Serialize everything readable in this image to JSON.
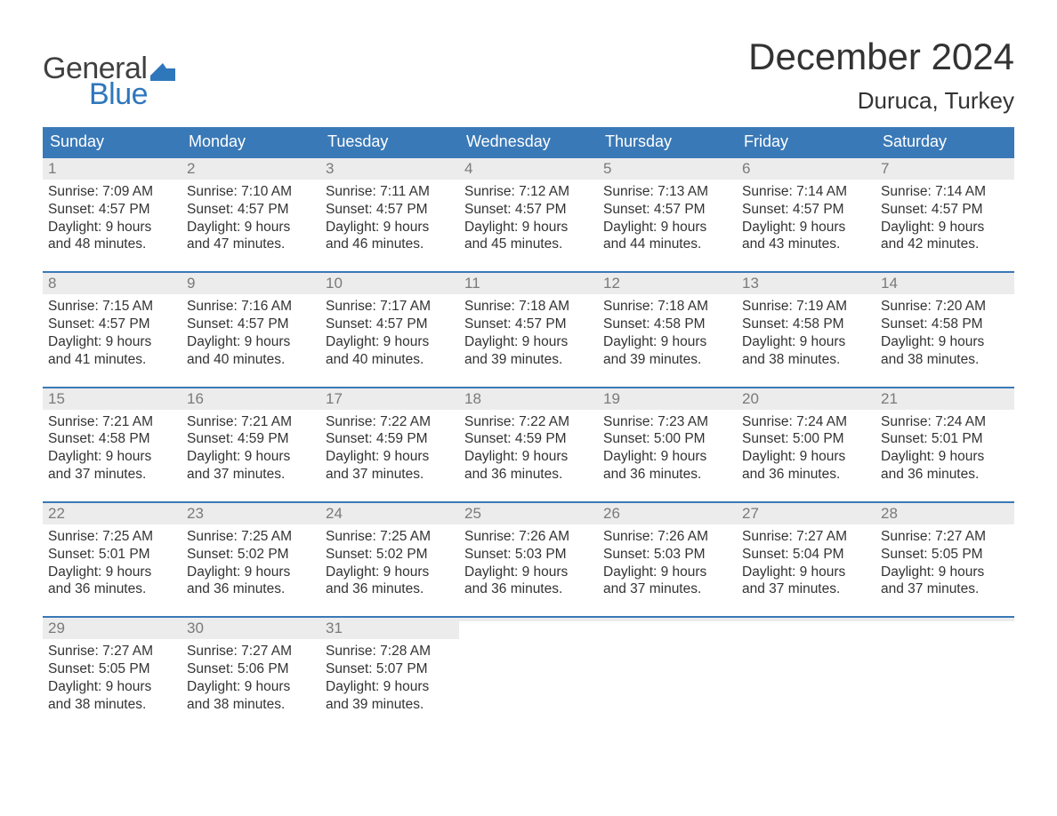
{
  "logo": {
    "text1": "General",
    "text2": "Blue",
    "flag_color": "#2f77bb",
    "text1_color": "#404040",
    "text2_color": "#2f77bb"
  },
  "title": "December 2024",
  "location": "Duruca, Turkey",
  "colors": {
    "header_bg": "#3a79b7",
    "header_text": "#ffffff",
    "daynum_bg": "#ececec",
    "daynum_text": "#7a7a7a",
    "body_text": "#333333",
    "week_border": "#3a79b7",
    "page_bg": "#ffffff"
  },
  "typography": {
    "title_fontsize": 42,
    "location_fontsize": 26,
    "weekday_fontsize": 18,
    "daynum_fontsize": 17,
    "content_fontsize": 15.5
  },
  "weekdays": [
    "Sunday",
    "Monday",
    "Tuesday",
    "Wednesday",
    "Thursday",
    "Friday",
    "Saturday"
  ],
  "weeks": [
    [
      {
        "n": "1",
        "sunrise": "7:09 AM",
        "sunset": "4:57 PM",
        "dl1": "9 hours",
        "dl2": "and 48 minutes."
      },
      {
        "n": "2",
        "sunrise": "7:10 AM",
        "sunset": "4:57 PM",
        "dl1": "9 hours",
        "dl2": "and 47 minutes."
      },
      {
        "n": "3",
        "sunrise": "7:11 AM",
        "sunset": "4:57 PM",
        "dl1": "9 hours",
        "dl2": "and 46 minutes."
      },
      {
        "n": "4",
        "sunrise": "7:12 AM",
        "sunset": "4:57 PM",
        "dl1": "9 hours",
        "dl2": "and 45 minutes."
      },
      {
        "n": "5",
        "sunrise": "7:13 AM",
        "sunset": "4:57 PM",
        "dl1": "9 hours",
        "dl2": "and 44 minutes."
      },
      {
        "n": "6",
        "sunrise": "7:14 AM",
        "sunset": "4:57 PM",
        "dl1": "9 hours",
        "dl2": "and 43 minutes."
      },
      {
        "n": "7",
        "sunrise": "7:14 AM",
        "sunset": "4:57 PM",
        "dl1": "9 hours",
        "dl2": "and 42 minutes."
      }
    ],
    [
      {
        "n": "8",
        "sunrise": "7:15 AM",
        "sunset": "4:57 PM",
        "dl1": "9 hours",
        "dl2": "and 41 minutes."
      },
      {
        "n": "9",
        "sunrise": "7:16 AM",
        "sunset": "4:57 PM",
        "dl1": "9 hours",
        "dl2": "and 40 minutes."
      },
      {
        "n": "10",
        "sunrise": "7:17 AM",
        "sunset": "4:57 PM",
        "dl1": "9 hours",
        "dl2": "and 40 minutes."
      },
      {
        "n": "11",
        "sunrise": "7:18 AM",
        "sunset": "4:57 PM",
        "dl1": "9 hours",
        "dl2": "and 39 minutes."
      },
      {
        "n": "12",
        "sunrise": "7:18 AM",
        "sunset": "4:58 PM",
        "dl1": "9 hours",
        "dl2": "and 39 minutes."
      },
      {
        "n": "13",
        "sunrise": "7:19 AM",
        "sunset": "4:58 PM",
        "dl1": "9 hours",
        "dl2": "and 38 minutes."
      },
      {
        "n": "14",
        "sunrise": "7:20 AM",
        "sunset": "4:58 PM",
        "dl1": "9 hours",
        "dl2": "and 38 minutes."
      }
    ],
    [
      {
        "n": "15",
        "sunrise": "7:21 AM",
        "sunset": "4:58 PM",
        "dl1": "9 hours",
        "dl2": "and 37 minutes."
      },
      {
        "n": "16",
        "sunrise": "7:21 AM",
        "sunset": "4:59 PM",
        "dl1": "9 hours",
        "dl2": "and 37 minutes."
      },
      {
        "n": "17",
        "sunrise": "7:22 AM",
        "sunset": "4:59 PM",
        "dl1": "9 hours",
        "dl2": "and 37 minutes."
      },
      {
        "n": "18",
        "sunrise": "7:22 AM",
        "sunset": "4:59 PM",
        "dl1": "9 hours",
        "dl2": "and 36 minutes."
      },
      {
        "n": "19",
        "sunrise": "7:23 AM",
        "sunset": "5:00 PM",
        "dl1": "9 hours",
        "dl2": "and 36 minutes."
      },
      {
        "n": "20",
        "sunrise": "7:24 AM",
        "sunset": "5:00 PM",
        "dl1": "9 hours",
        "dl2": "and 36 minutes."
      },
      {
        "n": "21",
        "sunrise": "7:24 AM",
        "sunset": "5:01 PM",
        "dl1": "9 hours",
        "dl2": "and 36 minutes."
      }
    ],
    [
      {
        "n": "22",
        "sunrise": "7:25 AM",
        "sunset": "5:01 PM",
        "dl1": "9 hours",
        "dl2": "and 36 minutes."
      },
      {
        "n": "23",
        "sunrise": "7:25 AM",
        "sunset": "5:02 PM",
        "dl1": "9 hours",
        "dl2": "and 36 minutes."
      },
      {
        "n": "24",
        "sunrise": "7:25 AM",
        "sunset": "5:02 PM",
        "dl1": "9 hours",
        "dl2": "and 36 minutes."
      },
      {
        "n": "25",
        "sunrise": "7:26 AM",
        "sunset": "5:03 PM",
        "dl1": "9 hours",
        "dl2": "and 36 minutes."
      },
      {
        "n": "26",
        "sunrise": "7:26 AM",
        "sunset": "5:03 PM",
        "dl1": "9 hours",
        "dl2": "and 37 minutes."
      },
      {
        "n": "27",
        "sunrise": "7:27 AM",
        "sunset": "5:04 PM",
        "dl1": "9 hours",
        "dl2": "and 37 minutes."
      },
      {
        "n": "28",
        "sunrise": "7:27 AM",
        "sunset": "5:05 PM",
        "dl1": "9 hours",
        "dl2": "and 37 minutes."
      }
    ],
    [
      {
        "n": "29",
        "sunrise": "7:27 AM",
        "sunset": "5:05 PM",
        "dl1": "9 hours",
        "dl2": "and 38 minutes."
      },
      {
        "n": "30",
        "sunrise": "7:27 AM",
        "sunset": "5:06 PM",
        "dl1": "9 hours",
        "dl2": "and 38 minutes."
      },
      {
        "n": "31",
        "sunrise": "7:28 AM",
        "sunset": "5:07 PM",
        "dl1": "9 hours",
        "dl2": "and 39 minutes."
      },
      {
        "empty": true
      },
      {
        "empty": true
      },
      {
        "empty": true
      },
      {
        "empty": true
      }
    ]
  ],
  "labels": {
    "sunrise": "Sunrise: ",
    "sunset": "Sunset: ",
    "daylight": "Daylight: "
  }
}
